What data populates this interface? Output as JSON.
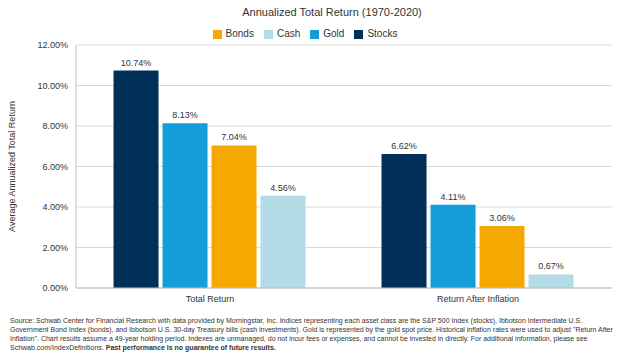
{
  "chart_data": {
    "type": "bar",
    "title": "Annualized Total Return (1970-2020)",
    "y_label": "Average Annualized Total Return",
    "categories": [
      "Total Return",
      "Return After Inflation"
    ],
    "series": [
      {
        "name": "Stocks",
        "color": "#003057",
        "values": [
          10.74,
          6.62
        ],
        "value_labels": [
          "10.74%",
          "6.62%"
        ]
      },
      {
        "name": "Gold",
        "color": "#139dd9",
        "values": [
          8.13,
          4.11
        ],
        "value_labels": [
          "8.13%",
          "4.11%"
        ]
      },
      {
        "name": "Bonds",
        "color": "#f5a800",
        "values": [
          7.04,
          3.06
        ],
        "value_labels": [
          "7.04%",
          "3.06%"
        ]
      },
      {
        "name": "Cash",
        "color": "#b3dce6",
        "values": [
          4.56,
          0.67
        ],
        "value_labels": [
          "4.56%",
          "0.67%"
        ]
      }
    ],
    "ylim": [
      0,
      12
    ],
    "yticks": [
      {
        "value": 0,
        "label": "0.00%"
      },
      {
        "value": 2,
        "label": "2.00%"
      },
      {
        "value": 4,
        "label": "4.00%"
      },
      {
        "value": 6,
        "label": "6.00%"
      },
      {
        "value": 8,
        "label": "8.00%"
      },
      {
        "value": 10,
        "label": "10.00%"
      },
      {
        "value": 12,
        "label": "12.00%"
      }
    ],
    "grid": true,
    "legend": "top",
    "data_labels": true,
    "footnote": "Source: Schwab Center for Financial Research with data provided by Morningstar, Inc. Indices representing each asset class are the S&P 500 Index (stocks), Ibbotson Intermediate U.S. Government Bond Index (bonds), and Ibbotson U.S. 30-day Treasury bills (cash investments). Gold is represented by the gold spot price. Historical inflation rates were used to adjust \"Return After Inflation\". Chart results assume a 49-year holding period. Indexes are unmanaged, do not incur fees or expenses, and cannot be invested in directly. For additional information, please see Schwab.com/IndexDefinitions.",
    "footnote_bold": "Past performance is no guarantee of future results."
  }
}
